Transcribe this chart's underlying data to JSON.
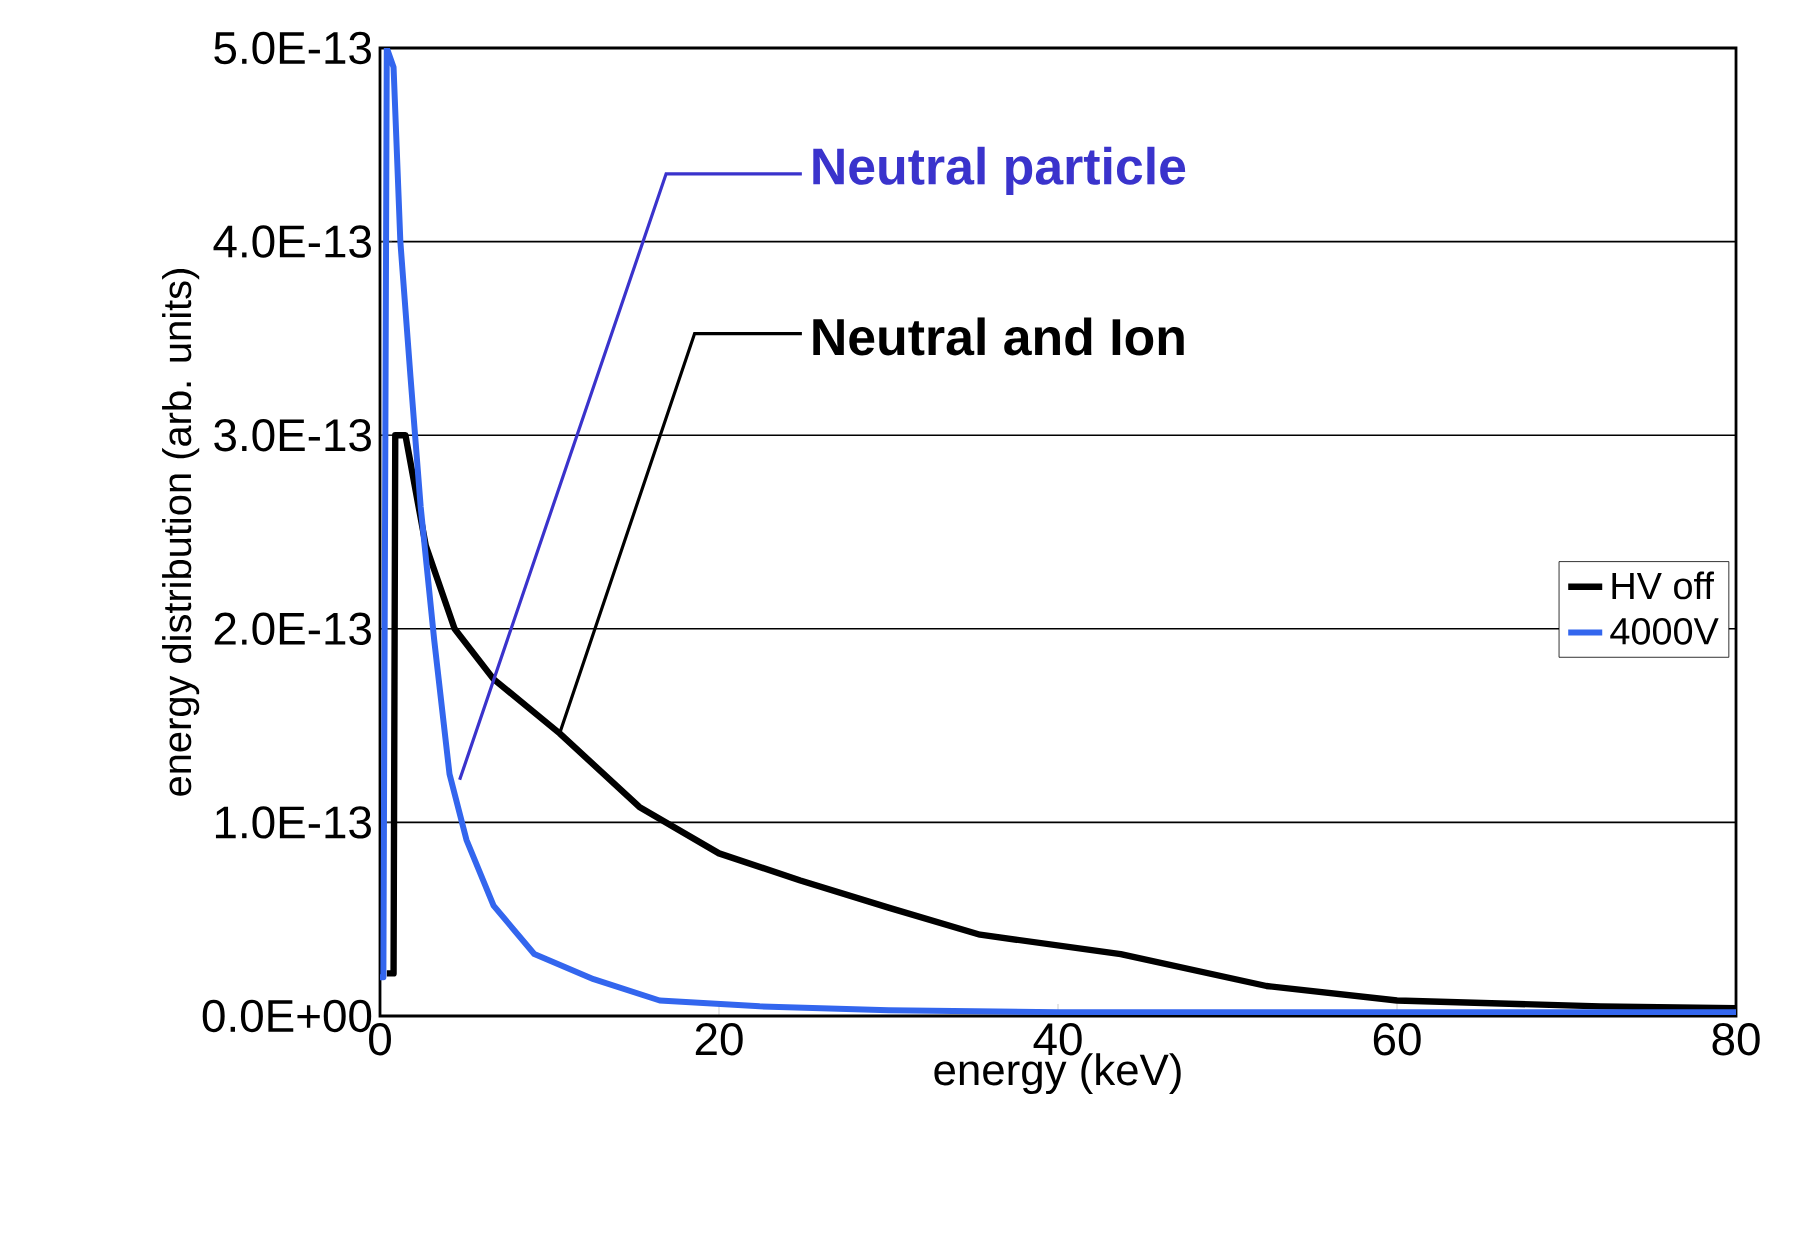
{
  "chart_data": {
    "type": "line",
    "xlabel": "energy (keV)",
    "ylabel": "energy distribution (arb. units)",
    "xlim": [
      0,
      80
    ],
    "xticks": [
      0,
      20,
      40,
      60,
      80
    ],
    "ylim": [
      0,
      5e-13
    ],
    "yticks": [
      {
        "value": 0,
        "label": "0.0E+00"
      },
      {
        "value": 1e-13,
        "label": "1.0E-13"
      },
      {
        "value": 2e-13,
        "label": "2.0E-13"
      },
      {
        "value": 3e-13,
        "label": "3.0E-13"
      },
      {
        "value": 4e-13,
        "label": "4.0E-13"
      },
      {
        "value": 5e-13,
        "label": "5.0E-13"
      }
    ],
    "grid": "y",
    "legend": "right",
    "marker": "none",
    "line_style": "solid",
    "series": [
      {
        "name": "HV off",
        "color": "#000000",
        "x": [
          0.4,
          0.8,
          0.9,
          1.5,
          2.7,
          4.4,
          6.7,
          10.6,
          15.3,
          20,
          24.8,
          30,
          35.4,
          43.7,
          52.3,
          60,
          72,
          80
        ],
        "values": [
          2.2e-14,
          2.2e-14,
          3e-13,
          3e-13,
          2.43e-13,
          2e-13,
          1.74e-13,
          1.46e-13,
          1.08e-13,
          8.4e-14,
          7e-14,
          5.6e-14,
          4.2e-14,
          3.2e-14,
          1.55e-14,
          8e-15,
          5e-15,
          4e-15
        ]
      },
      {
        "name": "4000V",
        "color": "#3366ee",
        "x": [
          0,
          0.2,
          0.4,
          0.8,
          1.2,
          1.8,
          2.4,
          3.2,
          4.1,
          5.1,
          6.7,
          9.1,
          12.6,
          16.5,
          22.4,
          30,
          40,
          60,
          80
        ],
        "values": [
          2e-14,
          2e-14,
          5e-13,
          4.9e-13,
          4e-13,
          3.3e-13,
          2.63e-13,
          1.94e-13,
          1.25e-13,
          9.1e-14,
          5.7e-14,
          3.2e-14,
          1.9e-14,
          8e-15,
          5e-15,
          3e-15,
          2e-15,
          2e-15,
          2e-15
        ]
      }
    ],
    "annotations": [
      {
        "text": "Neutral particle",
        "x": 4.7,
        "y": 1.22e-13
      },
      {
        "text": "Neutral and Ion",
        "x": 10.6,
        "y": 1.46e-13
      }
    ]
  }
}
